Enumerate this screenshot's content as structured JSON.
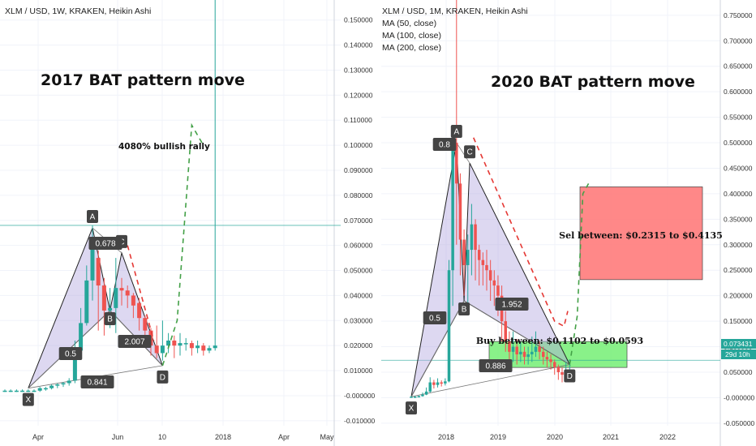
{
  "left_panel": {
    "header": "XLM / USD, 1W, KRAKEN, Heikin Ashi",
    "title": "2017 BAT pattern move",
    "annotation": "4080% bullish rally",
    "points": [
      {
        "label": "X",
        "name": "pattern-point-x"
      },
      {
        "label": "A",
        "name": "pattern-point-a"
      },
      {
        "label": "B",
        "name": "pattern-point-b"
      },
      {
        "label": "C",
        "name": "pattern-point-c"
      },
      {
        "label": "D",
        "name": "pattern-point-d"
      }
    ],
    "ratios": [
      {
        "label": "0.5",
        "name": "ratio-label-xb"
      },
      {
        "label": "0.678",
        "name": "ratio-label-ac"
      },
      {
        "label": "2.007",
        "name": "ratio-label-bd"
      },
      {
        "label": "0.841",
        "name": "ratio-label-xd"
      }
    ]
  },
  "right_panel": {
    "header": "XLM / USD, 1M, KRAKEN, Heikin Ashi",
    "indicators": [
      "MA (50, close)",
      "MA (100, close)",
      "MA (200, close)"
    ],
    "title": "2020 BAT pattern move",
    "sell_box": "Sel between: $0.2315 to $0.4135",
    "buy_box": "Buy between: $0.1102 to $0.0593",
    "points": [
      {
        "label": "X",
        "name": "pattern-point-x"
      },
      {
        "label": "A",
        "name": "pattern-point-a"
      },
      {
        "label": "B",
        "name": "pattern-point-b"
      },
      {
        "label": "C",
        "name": "pattern-point-c"
      },
      {
        "label": "D",
        "name": "pattern-point-d"
      }
    ],
    "ratios": [
      {
        "label": "0.5",
        "name": "ratio-label-xb"
      },
      {
        "label": "0.8",
        "name": "ratio-label-ac"
      },
      {
        "label": "1.952",
        "name": "ratio-label-bd"
      },
      {
        "label": "0.886",
        "name": "ratio-label-xd"
      }
    ],
    "price_label": "0.073431",
    "countdown_label": "29d 10h"
  },
  "chart_data": [
    {
      "type": "candlestick",
      "title": "2017 BAT pattern move",
      "x_ticks": [
        "Apr",
        "Jun",
        "10",
        "2018",
        "Apr",
        "May"
      ],
      "y_ticks": [
        "0.150000",
        "0.140000",
        "0.130000",
        "0.120000",
        "0.110000",
        "0.100000",
        "0.090000",
        "0.080000",
        "0.070000",
        "0.060000",
        "0.050000",
        "0.040000",
        "0.030000",
        "0.020000",
        "0.010000",
        "-0.000000",
        "-0.010000"
      ],
      "ylim": [
        -0.012,
        0.158
      ],
      "series": [
        {
          "o": 0.002,
          "c": 0.002,
          "h": 0.0025,
          "l": 0.0015
        },
        {
          "o": 0.002,
          "c": 0.002,
          "h": 0.0025,
          "l": 0.0015
        },
        {
          "o": 0.002,
          "c": 0.002,
          "h": 0.0025,
          "l": 0.0015
        },
        {
          "o": 0.002,
          "c": 0.002,
          "h": 0.0025,
          "l": 0.0015
        },
        {
          "o": 0.002,
          "c": 0.002,
          "h": 0.0025,
          "l": 0.0015
        },
        {
          "o": 0.002,
          "c": 0.002,
          "h": 0.0025,
          "l": 0.0015
        },
        {
          "o": 0.002,
          "c": 0.003,
          "h": 0.0035,
          "l": 0.0015
        },
        {
          "o": 0.003,
          "c": 0.003,
          "h": 0.0035,
          "l": 0.002
        },
        {
          "o": 0.003,
          "c": 0.004,
          "h": 0.0045,
          "l": 0.0025
        },
        {
          "o": 0.004,
          "c": 0.0045,
          "h": 0.005,
          "l": 0.003
        },
        {
          "o": 0.0045,
          "c": 0.005,
          "h": 0.0055,
          "l": 0.0035
        },
        {
          "o": 0.005,
          "c": 0.006,
          "h": 0.007,
          "l": 0.004
        },
        {
          "o": 0.006,
          "c": 0.018,
          "h": 0.022,
          "l": 0.005
        },
        {
          "o": 0.018,
          "c": 0.029,
          "h": 0.035,
          "l": 0.017
        },
        {
          "o": 0.029,
          "c": 0.046,
          "h": 0.052,
          "l": 0.028
        },
        {
          "o": 0.046,
          "c": 0.062,
          "h": 0.068,
          "l": 0.038
        },
        {
          "o": 0.055,
          "c": 0.044,
          "h": 0.058,
          "l": 0.026
        },
        {
          "o": 0.044,
          "c": 0.034,
          "h": 0.047,
          "l": 0.024
        },
        {
          "o": 0.034,
          "c": 0.035,
          "h": 0.043,
          "l": 0.027
        },
        {
          "o": 0.035,
          "c": 0.043,
          "h": 0.055,
          "l": 0.025
        },
        {
          "o": 0.043,
          "c": 0.042,
          "h": 0.047,
          "l": 0.036
        },
        {
          "o": 0.042,
          "c": 0.04,
          "h": 0.044,
          "l": 0.035
        },
        {
          "o": 0.04,
          "c": 0.036,
          "h": 0.041,
          "l": 0.031
        },
        {
          "o": 0.037,
          "c": 0.031,
          "h": 0.039,
          "l": 0.026
        },
        {
          "o": 0.031,
          "c": 0.026,
          "h": 0.032,
          "l": 0.021
        },
        {
          "o": 0.026,
          "c": 0.02,
          "h": 0.027,
          "l": 0.016
        },
        {
          "o": 0.02,
          "c": 0.017,
          "h": 0.028,
          "l": 0.015
        },
        {
          "o": 0.017,
          "c": 0.02,
          "h": 0.03,
          "l": 0.014
        },
        {
          "o": 0.02,
          "c": 0.022,
          "h": 0.025,
          "l": 0.017
        },
        {
          "o": 0.022,
          "c": 0.02,
          "h": 0.024,
          "l": 0.015
        },
        {
          "o": 0.02,
          "c": 0.021,
          "h": 0.025,
          "l": 0.016
        },
        {
          "o": 0.021,
          "c": 0.021,
          "h": 0.023,
          "l": 0.018
        },
        {
          "o": 0.021,
          "c": 0.019,
          "h": 0.022,
          "l": 0.016
        },
        {
          "o": 0.019,
          "c": 0.02,
          "h": 0.022,
          "l": 0.017
        },
        {
          "o": 0.02,
          "c": 0.018,
          "h": 0.021,
          "l": 0.016
        },
        {
          "o": 0.018,
          "c": 0.019,
          "h": 0.02,
          "l": 0.017
        },
        {
          "o": 0.019,
          "c": 0.02,
          "h": 0.16,
          "l": 0.018
        }
      ],
      "pattern": {
        "X": {
          "i": 4,
          "y": 0.003
        },
        "A": {
          "i": 15,
          "y": 0.067
        },
        "B": {
          "i": 18,
          "y": 0.034
        },
        "C": {
          "i": 20,
          "y": 0.057
        },
        "D": {
          "i": 27,
          "y": 0.012
        }
      },
      "projection": [
        {
          "i": 27,
          "y": 0.012
        },
        {
          "i": 29.5,
          "y": 0.03
        },
        {
          "i": 32,
          "y": 0.108
        },
        {
          "i": 34,
          "y": 0.1
        }
      ],
      "horizontal_line": 0.068
    },
    {
      "type": "candlestick",
      "title": "2020 BAT pattern move",
      "x_ticks": [
        "2018",
        "2019",
        "2020",
        "2021",
        "2022"
      ],
      "y_ticks": [
        "0.750000",
        "0.700000",
        "0.650000",
        "0.600000",
        "0.550000",
        "0.500000",
        "0.450000",
        "0.400000",
        "0.350000",
        "0.300000",
        "0.250000",
        "0.200000",
        "0.150000",
        "0.100000",
        "0.050000",
        "-0.000000",
        "-0.050000"
      ],
      "ylim": [
        -0.055,
        0.78
      ],
      "series": [
        {
          "o": 0.002,
          "c": 0.002,
          "h": 0.003,
          "l": 0.001
        },
        {
          "o": 0.002,
          "c": 0.002,
          "h": 0.003,
          "l": 0.001
        },
        {
          "o": 0.002,
          "c": 0.003,
          "h": 0.004,
          "l": 0.002
        },
        {
          "o": 0.003,
          "c": 0.006,
          "h": 0.01,
          "l": 0.002
        },
        {
          "o": 0.006,
          "c": 0.012,
          "h": 0.02,
          "l": 0.005
        },
        {
          "o": 0.012,
          "c": 0.03,
          "h": 0.04,
          "l": 0.01
        },
        {
          "o": 0.03,
          "c": 0.025,
          "h": 0.035,
          "l": 0.018
        },
        {
          "o": 0.025,
          "c": 0.03,
          "h": 0.038,
          "l": 0.02
        },
        {
          "o": 0.03,
          "c": 0.028,
          "h": 0.034,
          "l": 0.022
        },
        {
          "o": 0.028,
          "c": 0.032,
          "h": 0.038,
          "l": 0.024
        },
        {
          "o": 0.032,
          "c": 0.25,
          "h": 0.27,
          "l": 0.03
        },
        {
          "o": 0.25,
          "c": 0.5,
          "h": 0.53,
          "l": 0.18
        },
        {
          "o": 0.5,
          "c": 0.42,
          "h": 0.94,
          "l": 0.3
        },
        {
          "o": 0.42,
          "c": 0.31,
          "h": 0.44,
          "l": 0.24
        },
        {
          "o": 0.31,
          "c": 0.26,
          "h": 0.33,
          "l": 0.2
        },
        {
          "o": 0.26,
          "c": 0.29,
          "h": 0.32,
          "l": 0.18
        },
        {
          "o": 0.29,
          "c": 0.34,
          "h": 0.38,
          "l": 0.24
        },
        {
          "o": 0.34,
          "c": 0.29,
          "h": 0.35,
          "l": 0.23
        },
        {
          "o": 0.29,
          "c": 0.27,
          "h": 0.3,
          "l": 0.22
        },
        {
          "o": 0.27,
          "c": 0.26,
          "h": 0.285,
          "l": 0.22
        },
        {
          "o": 0.26,
          "c": 0.25,
          "h": 0.29,
          "l": 0.21
        },
        {
          "o": 0.25,
          "c": 0.23,
          "h": 0.27,
          "l": 0.19
        },
        {
          "o": 0.23,
          "c": 0.22,
          "h": 0.25,
          "l": 0.18
        },
        {
          "o": 0.22,
          "c": 0.2,
          "h": 0.24,
          "l": 0.16
        },
        {
          "o": 0.2,
          "c": 0.15,
          "h": 0.22,
          "l": 0.11
        },
        {
          "o": 0.15,
          "c": 0.11,
          "h": 0.17,
          "l": 0.09
        },
        {
          "o": 0.11,
          "c": 0.09,
          "h": 0.13,
          "l": 0.07
        },
        {
          "o": 0.09,
          "c": 0.1,
          "h": 0.13,
          "l": 0.07
        },
        {
          "o": 0.1,
          "c": 0.085,
          "h": 0.115,
          "l": 0.065
        },
        {
          "o": 0.085,
          "c": 0.09,
          "h": 0.11,
          "l": 0.07
        },
        {
          "o": 0.09,
          "c": 0.08,
          "h": 0.1,
          "l": 0.065
        },
        {
          "o": 0.08,
          "c": 0.085,
          "h": 0.1,
          "l": 0.065
        },
        {
          "o": 0.085,
          "c": 0.09,
          "h": 0.12,
          "l": 0.07
        },
        {
          "o": 0.09,
          "c": 0.1,
          "h": 0.13,
          "l": 0.08
        },
        {
          "o": 0.1,
          "c": 0.09,
          "h": 0.11,
          "l": 0.075
        },
        {
          "o": 0.09,
          "c": 0.08,
          "h": 0.1,
          "l": 0.065
        },
        {
          "o": 0.08,
          "c": 0.075,
          "h": 0.09,
          "l": 0.06
        },
        {
          "o": 0.075,
          "c": 0.07,
          "h": 0.085,
          "l": 0.055
        },
        {
          "o": 0.07,
          "c": 0.06,
          "h": 0.075,
          "l": 0.045
        },
        {
          "o": 0.06,
          "c": 0.05,
          "h": 0.065,
          "l": 0.035
        },
        {
          "o": 0.05,
          "c": 0.045,
          "h": 0.06,
          "l": 0.03
        },
        {
          "o": 0.045,
          "c": 0.05,
          "h": 0.07,
          "l": 0.035
        },
        {
          "o": 0.05,
          "c": 0.055,
          "h": 0.075,
          "l": 0.04
        }
      ],
      "pattern": {
        "X": {
          "i": 0,
          "y": 0.002
        },
        "A": {
          "i": 12,
          "y": 0.5
        },
        "B": {
          "i": 14,
          "y": 0.19
        },
        "C": {
          "i": 15.5,
          "y": 0.46
        },
        "D": {
          "i": 42,
          "y": 0.065
        }
      },
      "projection": [
        {
          "i": 42,
          "y": 0.065
        },
        {
          "i": 44,
          "y": 0.16
        },
        {
          "i": 45.5,
          "y": 0.4
        },
        {
          "i": 47,
          "y": 0.42
        }
      ],
      "red_trend": [
        {
          "i": 16.5,
          "y": 0.51
        },
        {
          "i": 38,
          "y": 0.15
        },
        {
          "i": 40.5,
          "y": 0.14
        },
        {
          "i": 41.5,
          "y": 0.17
        }
      ],
      "sell_zone": [
        0.2315,
        0.4135
      ],
      "buy_zone": [
        0.0593,
        0.1102
      ],
      "horizontal_line": 0.073431
    }
  ]
}
